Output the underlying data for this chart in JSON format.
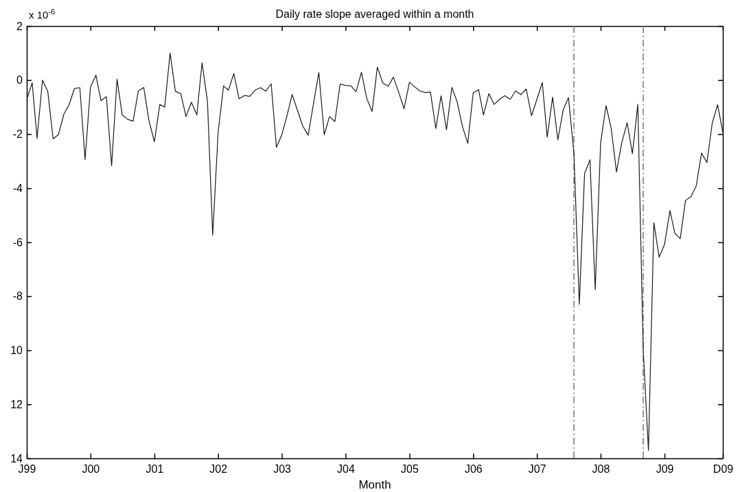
{
  "chart_data": {
    "type": "line",
    "title": "Daily rate slope averaged within a month",
    "xlabel": "Month",
    "annotations": [
      "x 10$^{-6}$"
    ],
    "x": [
      "1999-01",
      "1999-02",
      "1999-03",
      "1999-04",
      "1999-05",
      "1999-06",
      "1999-07",
      "1999-08",
      "1999-09",
      "1999-10",
      "1999-11",
      "1999-12",
      "2000-01",
      "2000-02",
      "2000-03",
      "2000-04",
      "2000-05",
      "2000-06",
      "2000-07",
      "2000-08",
      "2000-09",
      "2000-10",
      "2000-11",
      "2000-12",
      "2001-01",
      "2001-02",
      "2001-03",
      "2001-04",
      "2001-05",
      "2001-06",
      "2001-07",
      "2001-08",
      "2001-09",
      "2001-10",
      "2001-11",
      "2001-12",
      "2002-01",
      "2002-02",
      "2002-03",
      "2002-04",
      "2002-05",
      "2002-06",
      "2002-07",
      "2002-08",
      "2002-09",
      "2002-10",
      "2002-11",
      "2002-12",
      "2003-01",
      "2003-02",
      "2003-03",
      "2003-04",
      "2003-05",
      "2003-06",
      "2003-07",
      "2003-08",
      "2003-09",
      "2003-10",
      "2003-11",
      "2003-12",
      "2004-01",
      "2004-02",
      "2004-03",
      "2004-04",
      "2004-05",
      "2004-06",
      "2004-07",
      "2004-08",
      "2004-09",
      "2004-10",
      "2004-11",
      "2004-12",
      "2005-01",
      "2005-02",
      "2005-03",
      "2005-04",
      "2005-05",
      "2005-06",
      "2005-07",
      "2005-08",
      "2005-09",
      "2005-10",
      "2005-11",
      "2005-12",
      "2006-01",
      "2006-02",
      "2006-03",
      "2006-04",
      "2006-05",
      "2006-06",
      "2006-07",
      "2006-08",
      "2006-09",
      "2006-10",
      "2006-11",
      "2006-12",
      "2007-01",
      "2007-02",
      "2007-03",
      "2007-04",
      "2007-05",
      "2007-06",
      "2007-07",
      "2007-08",
      "2007-09",
      "2007-10",
      "2007-11",
      "2007-12",
      "2008-01",
      "2008-02",
      "2008-03",
      "2008-04",
      "2008-05",
      "2008-06",
      "2008-07",
      "2008-08",
      "2008-09",
      "2008-10",
      "2008-11",
      "2008-12",
      "2009-01",
      "2009-02",
      "2009-03",
      "2009-04",
      "2009-05",
      "2009-06",
      "2009-07",
      "2009-08",
      "2009-09",
      "2009-10",
      "2009-11",
      "2009-12"
    ],
    "series": [
      {
        "color": "#1a1a1a",
        "values": [
          -0.71,
          -0.1,
          -2.15,
          0,
          -0.41,
          -2.17,
          -2.02,
          -1.27,
          -0.9,
          -0.31,
          -0.28,
          -2.94,
          -0.25,
          0.18,
          -0.76,
          -0.61,
          -3.17,
          0.03,
          -1.29,
          -1.45,
          -1.52,
          -0.4,
          -0.27,
          -1.51,
          -2.28,
          -0.9,
          -1.0,
          1.0,
          -0.41,
          -0.5,
          -1.35,
          -0.82,
          -1.29,
          0.64,
          -0.79,
          -5.74,
          -1.93,
          -0.22,
          -0.37,
          0.24,
          -0.69,
          -0.57,
          -0.6,
          -0.37,
          -0.28,
          -0.41,
          -0.14,
          -2.49,
          -2.02,
          -1.28,
          -0.53,
          -1.13,
          -1.7,
          -2.04,
          -0.88,
          0.28,
          -2.02,
          -1.35,
          -1.53,
          -0.14,
          -0.2,
          -0.21,
          -0.43,
          0.29,
          -0.67,
          -1.16,
          0.48,
          -0.1,
          -0.23,
          0.11,
          -0.46,
          -1.06,
          -0.08,
          -0.25,
          -0.4,
          -0.46,
          -0.44,
          -1.79,
          -0.58,
          -1.84,
          -0.27,
          -0.8,
          -1.73,
          -2.34,
          -0.47,
          -0.35,
          -1.29,
          -0.5,
          -0.9,
          -0.71,
          -0.58,
          -0.71,
          -0.4,
          -0.54,
          -0.33,
          -1.32,
          -0.71,
          -0.09,
          -2.11,
          -0.63,
          -2.21,
          -1.09,
          -0.65,
          -2.7,
          -8.3,
          -3.46,
          -2.95,
          -7.76,
          -2.32,
          -0.94,
          -1.77,
          -3.4,
          -2.32,
          -1.58,
          -2.72,
          -0.9,
          -10.0,
          -13.7,
          -5.28,
          -6.55,
          -6.08,
          -4.83,
          -5.66,
          -5.87,
          -4.46,
          -4.31,
          -3.93,
          -2.7,
          -3.05,
          -1.6,
          -0.91,
          -1.94
        ]
      }
    ],
    "xlim": [
      "1999-01",
      "2009-12"
    ],
    "xticks": [
      {
        "value": "1999-01",
        "label": "J99"
      },
      {
        "value": "2000-01",
        "label": "J00"
      },
      {
        "value": "2001-01",
        "label": "J01"
      },
      {
        "value": "2002-01",
        "label": "J02"
      },
      {
        "value": "2003-01",
        "label": "J03"
      },
      {
        "value": "2004-01",
        "label": "J04"
      },
      {
        "value": "2005-01",
        "label": "J05"
      },
      {
        "value": "2006-01",
        "label": "J06"
      },
      {
        "value": "2007-01",
        "label": "J07"
      },
      {
        "value": "2008-01",
        "label": "J08"
      },
      {
        "value": "2009-01",
        "label": "J09"
      },
      {
        "value": "2009-12",
        "label": "D09"
      }
    ],
    "ylim": [
      -14,
      2
    ],
    "yticks": [
      2,
      0,
      -2,
      -4,
      -6,
      -8,
      {
        "value": -10,
        "label": "10"
      },
      {
        "value": -12,
        "label": "12"
      },
      {
        "value": -14,
        "label": "14"
      }
    ],
    "ref_lines": [
      {
        "axis": "x",
        "value": "2007-08",
        "color": "#777777",
        "line_style": "dashed"
      },
      {
        "axis": "x",
        "value": "2008-09",
        "color": "#777777",
        "line_style": "dashed"
      }
    ],
    "line_style": "solid"
  }
}
